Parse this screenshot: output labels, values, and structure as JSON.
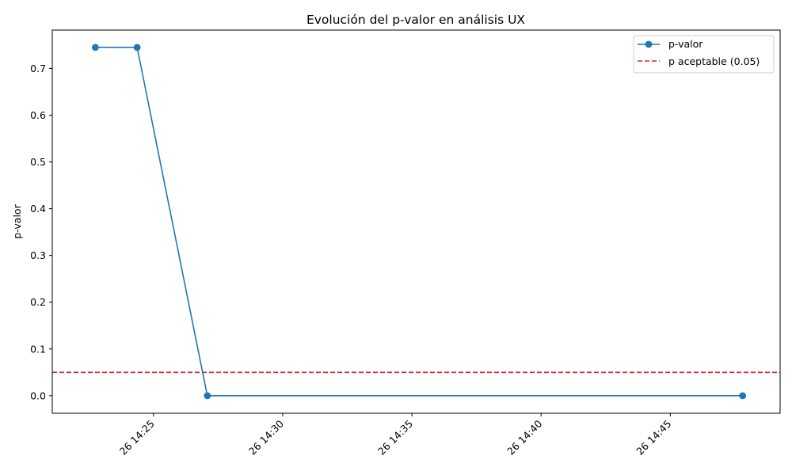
{
  "colors": {
    "series": "#1f77b4",
    "threshold": "#d62728"
  },
  "chart_data": {
    "type": "line",
    "title": "Evolución del p-valor en análisis UX",
    "xlabel": "",
    "ylabel": "p-valor",
    "x_axis_type": "datetime",
    "x_tick_labels": [
      "26 14:25",
      "26 14:30",
      "26 14:35",
      "26 14:40",
      "26 14:45"
    ],
    "x_tick_values": [
      "2024-06-26T14:25",
      "2024-06-26T14:30",
      "2024-06-26T14:35",
      "2024-06-26T14:40",
      "2024-06-26T14:45"
    ],
    "xlim": [
      "2024-06-26T14:21:05",
      "2024-06-26T14:49:15"
    ],
    "y_ticks": [
      0.0,
      0.1,
      0.2,
      0.3,
      0.4,
      0.5,
      0.6,
      0.7
    ],
    "y_tick_labels": [
      "0.0",
      "0.1",
      "0.2",
      "0.3",
      "0.4",
      "0.5",
      "0.6",
      "0.7"
    ],
    "ylim": [
      -0.0375,
      0.782
    ],
    "grid": false,
    "legend_position": "top-right",
    "series": [
      {
        "name": "p-valor",
        "style": "solid line with circle markers",
        "x": [
          "2024-06-26T14:22:45",
          "2024-06-26T14:24:22",
          "2024-06-26T14:27:05",
          "2024-06-26T14:47:48"
        ],
        "y": [
          0.745,
          0.745,
          0.0,
          0.0
        ]
      }
    ],
    "hlines": [
      {
        "name": "p aceptable (0.05)",
        "y": 0.05,
        "style": "dashed"
      }
    ]
  }
}
